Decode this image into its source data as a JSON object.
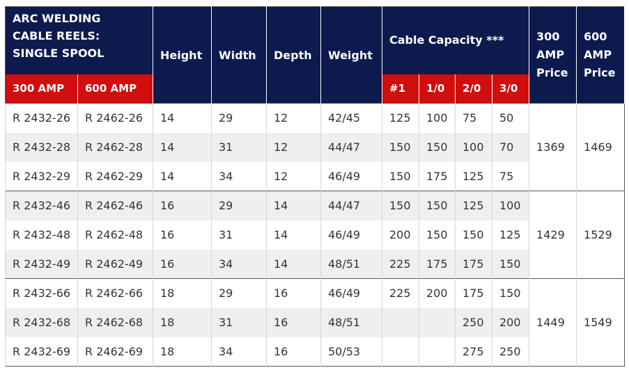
{
  "header": {
    "title_lines": [
      "ARC WELDING",
      "CABLE REELS:",
      "SINGLE SPOOL"
    ],
    "col_300": "300 AMP",
    "col_600": "600 AMP",
    "height": "Height",
    "width": "Width",
    "depth": "Depth",
    "weight": "Weight",
    "cable_capacity": "Cable Capacity ***",
    "cap_sizes": [
      "#1",
      "1/0",
      "2/0",
      "3/0"
    ],
    "price300_lines": [
      "300",
      "AMP",
      "Price"
    ],
    "price600_lines": [
      "600",
      "AMP",
      "Price"
    ]
  },
  "groups": [
    {
      "price300": "1369",
      "price600": "1469",
      "rows": [
        {
          "m300": "R 2432-26",
          "m600": "R 2462-26",
          "height": "14",
          "width": "29",
          "depth": "12",
          "weight": "42/45",
          "c1": "125",
          "c10": "100",
          "c20": "75",
          "c30": "50"
        },
        {
          "m300": "R 2432-28",
          "m600": "R 2462-28",
          "height": "14",
          "width": "31",
          "depth": "12",
          "weight": "44/47",
          "c1": "150",
          "c10": "150",
          "c20": "100",
          "c30": "70"
        },
        {
          "m300": "R 2432-29",
          "m600": "R 2462-29",
          "height": "14",
          "width": "34",
          "depth": "12",
          "weight": "46/49",
          "c1": "150",
          "c10": "175",
          "c20": "125",
          "c30": "75"
        }
      ]
    },
    {
      "price300": "1429",
      "price600": "1529",
      "rows": [
        {
          "m300": "R 2432-46",
          "m600": "R 2462-46",
          "height": "16",
          "width": "29",
          "depth": "14",
          "weight": "44/47",
          "c1": "150",
          "c10": "150",
          "c20": "125",
          "c30": "100"
        },
        {
          "m300": "R 2432-48",
          "m600": "R 2462-48",
          "height": "16",
          "width": "31",
          "depth": "14",
          "weight": "46/49",
          "c1": "200",
          "c10": "150",
          "c20": "150",
          "c30": "125"
        },
        {
          "m300": "R 2432-49",
          "m600": "R 2462-49",
          "height": "16",
          "width": "34",
          "depth": "14",
          "weight": "48/51",
          "c1": "225",
          "c10": "175",
          "c20": "175",
          "c30": "150"
        }
      ]
    },
    {
      "price300": "1449",
      "price600": "1549",
      "rows": [
        {
          "m300": "R 2432-66",
          "m600": "R 2462-66",
          "height": "18",
          "width": "29",
          "depth": "16",
          "weight": "46/49",
          "c1": "225",
          "c10": "200",
          "c20": "175",
          "c30": "150"
        },
        {
          "m300": "R 2432-68",
          "m600": "R 2462-68",
          "height": "18",
          "width": "31",
          "depth": "16",
          "weight": "48/51",
          "c1": "",
          "c10": "",
          "c20": "250",
          "c30": "200"
        },
        {
          "m300": "R 2432-69",
          "m600": "R 2462-69",
          "height": "18",
          "width": "34",
          "depth": "16",
          "weight": "50/53",
          "c1": "",
          "c10": "",
          "c20": "275",
          "c30": "250"
        }
      ]
    }
  ]
}
